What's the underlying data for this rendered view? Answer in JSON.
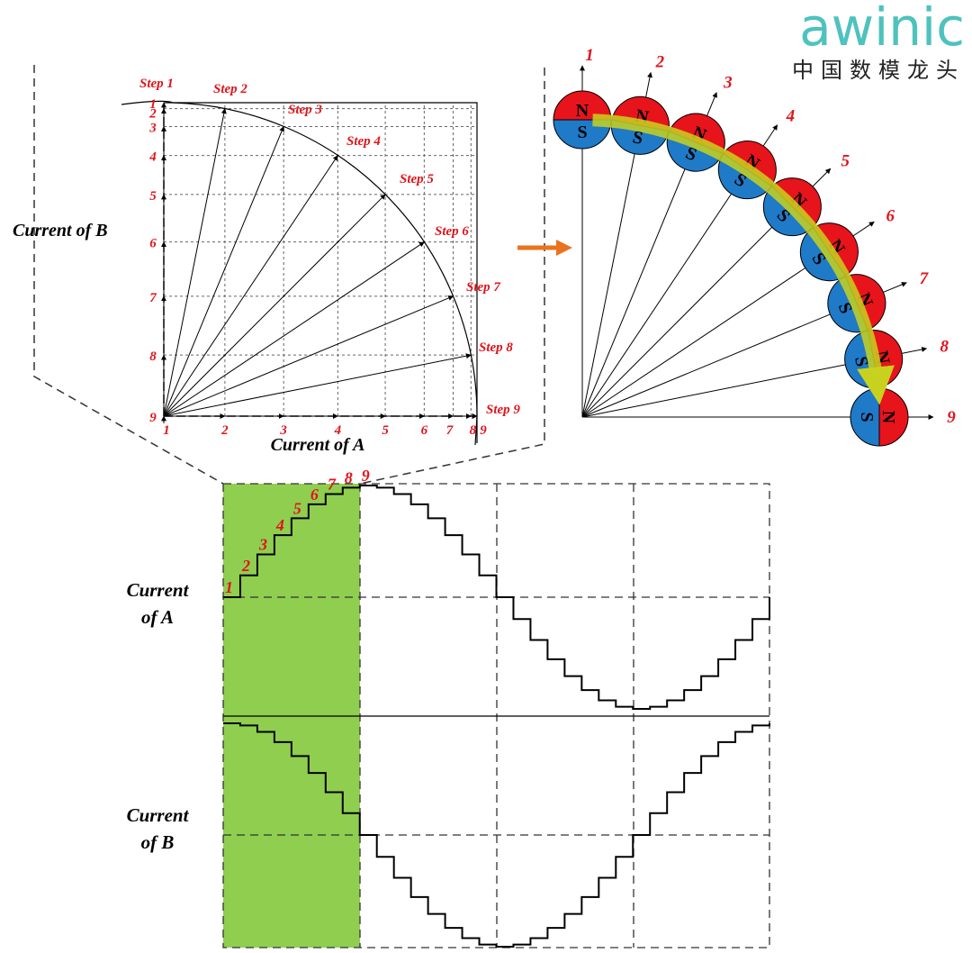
{
  "logo": {
    "brand": "awinic",
    "tagline": "中国数模龙头"
  },
  "vector_diagram": {
    "steps": [
      "Step 1",
      "Step 2",
      "Step 3",
      "Step 4",
      "Step 5",
      "Step 6",
      "Step 7",
      "Step 8",
      "Step 9"
    ],
    "a_ticks": [
      "1",
      "2",
      "3",
      "4",
      "5",
      "6",
      "7",
      "8",
      "9"
    ],
    "b_ticks": [
      "1",
      "2",
      "3",
      "4",
      "5",
      "6",
      "7",
      "8",
      "9"
    ],
    "x_label": "Current of A",
    "y_label": "Current of B"
  },
  "rotor_diagram": {
    "labels": [
      "1",
      "2",
      "3",
      "4",
      "5",
      "6",
      "7",
      "8",
      "9"
    ],
    "north": "N",
    "south": "S"
  },
  "waveforms": {
    "step_labels": [
      "1",
      "2",
      "3",
      "4",
      "5",
      "6",
      "7",
      "8",
      "9"
    ],
    "a_label": [
      "Current",
      "of A"
    ],
    "b_label": [
      "Current",
      "of B"
    ]
  }
}
